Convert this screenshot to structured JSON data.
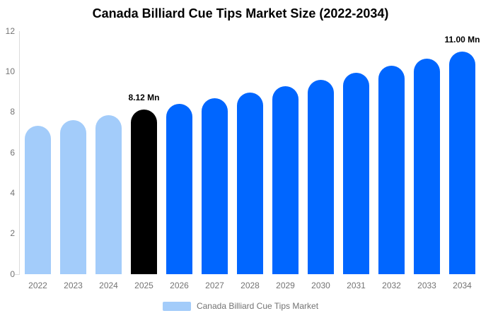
{
  "chart_data": {
    "type": "bar",
    "title": "Canada Billiard Cue Tips Market Size (2022-2034)",
    "unit": "Mn",
    "categories": [
      "2022",
      "2023",
      "2024",
      "2025",
      "2026",
      "2027",
      "2028",
      "2029",
      "2030",
      "2031",
      "2032",
      "2033",
      "2034"
    ],
    "values": [
      7.34,
      7.59,
      7.85,
      8.12,
      8.4,
      8.69,
      8.98,
      9.29,
      9.61,
      9.94,
      10.28,
      10.63,
      11.0
    ],
    "ylim": [
      0,
      12
    ],
    "yticks": [
      0,
      2,
      4,
      6,
      8,
      10,
      12
    ],
    "grid": false,
    "legend_position": "bottom-center",
    "point_roles": [
      "historical",
      "historical",
      "historical",
      "highlight",
      "forecast",
      "forecast",
      "forecast",
      "forecast",
      "forecast",
      "forecast",
      "forecast",
      "forecast",
      "forecast"
    ],
    "colors": {
      "historical": "#A3CCFA",
      "highlight": "#000000",
      "forecast": "#0066FF"
    },
    "data_labels": [
      {
        "index": 3,
        "text": "8.12 Mn"
      },
      {
        "index": 12,
        "text": "11.00 Mn"
      }
    ],
    "legend": {
      "label": "Canada Billiard Cue Tips Market",
      "swatch_color": "#A3CCFA"
    },
    "axis_color": "#DCDCDC",
    "label_color": "#737373"
  }
}
